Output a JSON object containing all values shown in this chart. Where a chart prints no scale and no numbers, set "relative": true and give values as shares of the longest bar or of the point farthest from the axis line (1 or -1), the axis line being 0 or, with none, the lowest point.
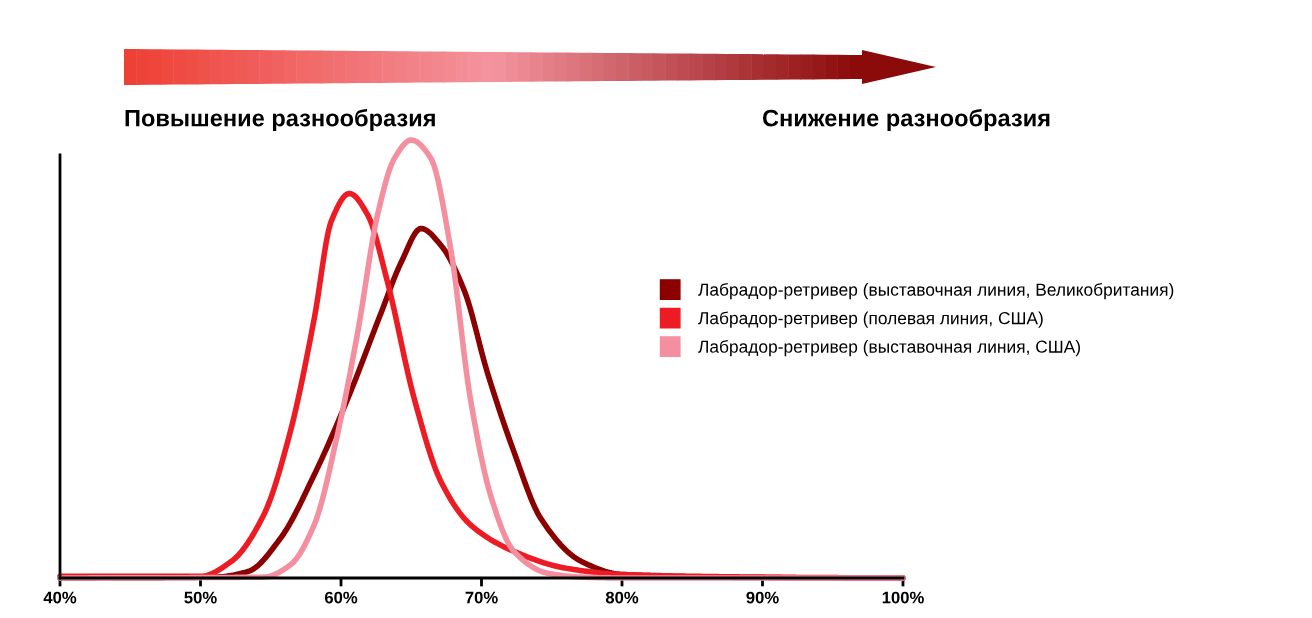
{
  "chart_data": {
    "type": "line",
    "relative": true,
    "xlim": [
      40,
      100
    ],
    "xticks": [
      {
        "value": 40,
        "label": "40%"
      },
      {
        "value": 50,
        "label": "50%"
      },
      {
        "value": 60,
        "label": "60%"
      },
      {
        "value": 70,
        "label": "70%"
      },
      {
        "value": 80,
        "label": "80%"
      },
      {
        "value": 90,
        "label": "90%"
      },
      {
        "value": 100,
        "label": "100%"
      }
    ],
    "annotations": [
      "Повышение разнообразия",
      "Снижение разнообразия"
    ],
    "legend": "right",
    "marker": "none",
    "line_style": "solid",
    "grid": false,
    "tick_labels": "x",
    "series": [
      {
        "name": "Лабрадор-ретривер (выставочная линия, Великобритания)",
        "color": "#8b0000",
        "x": [
          40,
          51,
          53.4,
          55.7,
          58.1,
          60.5,
          62.8,
          64.3,
          65.7,
          67.1,
          68.8,
          70.4,
          72.3,
          74.2,
          77.1,
          80,
          90,
          100
        ],
        "values": [
          0,
          0.002,
          0.015,
          0.091,
          0.236,
          0.411,
          0.601,
          0.722,
          0.798,
          0.76,
          0.654,
          0.471,
          0.289,
          0.137,
          0.038,
          0.008,
          0.001,
          0
        ]
      },
      {
        "name": "Лабрадор-ретривер (полевая линия, США)",
        "color": "#ed1c24",
        "x": [
          40,
          50,
          52.2,
          54.5,
          56.4,
          58.1,
          59.3,
          60.6,
          61.9,
          63.3,
          65.2,
          67.1,
          69.2,
          72.3,
          75.9,
          80,
          90,
          100
        ],
        "values": [
          0.004,
          0.004,
          0.038,
          0.144,
          0.335,
          0.593,
          0.814,
          0.878,
          0.829,
          0.677,
          0.411,
          0.221,
          0.122,
          0.061,
          0.023,
          0.008,
          0.002,
          0
        ]
      },
      {
        "name": "Лабрадор-ретривер (выставочная линия, США)",
        "color": "#f48fa0",
        "x": [
          40,
          54.5,
          56.4,
          58.1,
          59.8,
          61.2,
          62.6,
          63.8,
          65,
          66.4,
          67.8,
          69.2,
          70.7,
          72.3,
          74.7,
          77.1,
          80,
          100
        ],
        "values": [
          0,
          0.002,
          0.03,
          0.122,
          0.335,
          0.563,
          0.829,
          0.958,
          1,
          0.958,
          0.753,
          0.411,
          0.183,
          0.061,
          0.011,
          0.002,
          0,
          0
        ]
      }
    ]
  }
}
